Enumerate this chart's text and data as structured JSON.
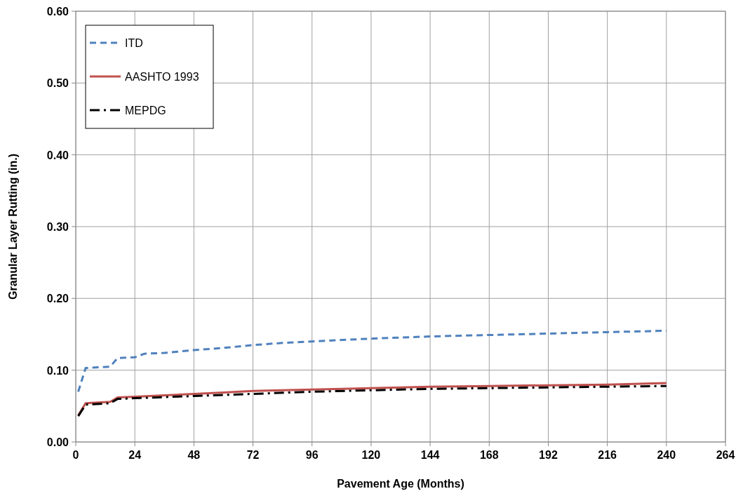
{
  "chart_data": {
    "type": "line",
    "xlabel": "Pavement Age (Months)",
    "ylabel": "Granular Layer Rutting (in.)",
    "xlim": [
      0,
      264
    ],
    "xticks": [
      0,
      24,
      48,
      72,
      96,
      120,
      144,
      168,
      192,
      216,
      240,
      264
    ],
    "ylim": [
      0,
      0.6
    ],
    "yticks": [
      {
        "value": 0,
        "label": "0.00"
      },
      {
        "value": 0.1,
        "label": "0.10"
      },
      {
        "value": 0.2,
        "label": "0.20"
      },
      {
        "value": 0.3,
        "label": "0.30"
      },
      {
        "value": 0.4,
        "label": "0.40"
      },
      {
        "value": 0.5,
        "label": "0.50"
      },
      {
        "value": 0.6,
        "label": "0.60"
      }
    ],
    "grid": true,
    "legend": "top left",
    "series": [
      {
        "name": "ITD",
        "color": "#4f81bd",
        "line_style": "dashed",
        "x": [
          1,
          4,
          14,
          17,
          24,
          28,
          36,
          48,
          60,
          72,
          84,
          96,
          120,
          144,
          168,
          192,
          216,
          240
        ],
        "values": [
          0.07,
          0.103,
          0.105,
          0.117,
          0.118,
          0.123,
          0.124,
          0.128,
          0.131,
          0.135,
          0.138,
          0.14,
          0.144,
          0.147,
          0.149,
          0.151,
          0.153,
          0.155
        ]
      },
      {
        "name": "AASHTO 1993",
        "color": "#c0504d",
        "line_style": "solid",
        "x": [
          1,
          4,
          14,
          17,
          24,
          36,
          48,
          60,
          72,
          96,
          120,
          144,
          168,
          192,
          216,
          240
        ],
        "values": [
          0.037,
          0.054,
          0.056,
          0.062,
          0.063,
          0.065,
          0.067,
          0.069,
          0.071,
          0.073,
          0.075,
          0.077,
          0.078,
          0.079,
          0.08,
          0.082
        ]
      },
      {
        "name": "MEPDG",
        "color": "#000000",
        "line_style": "dashdot",
        "x": [
          1,
          4,
          14,
          17,
          24,
          48,
          72,
          96,
          120,
          144,
          168,
          192,
          216,
          240
        ],
        "values": [
          0.036,
          0.052,
          0.054,
          0.06,
          0.061,
          0.064,
          0.067,
          0.07,
          0.072,
          0.074,
          0.075,
          0.076,
          0.077,
          0.078
        ]
      }
    ]
  }
}
